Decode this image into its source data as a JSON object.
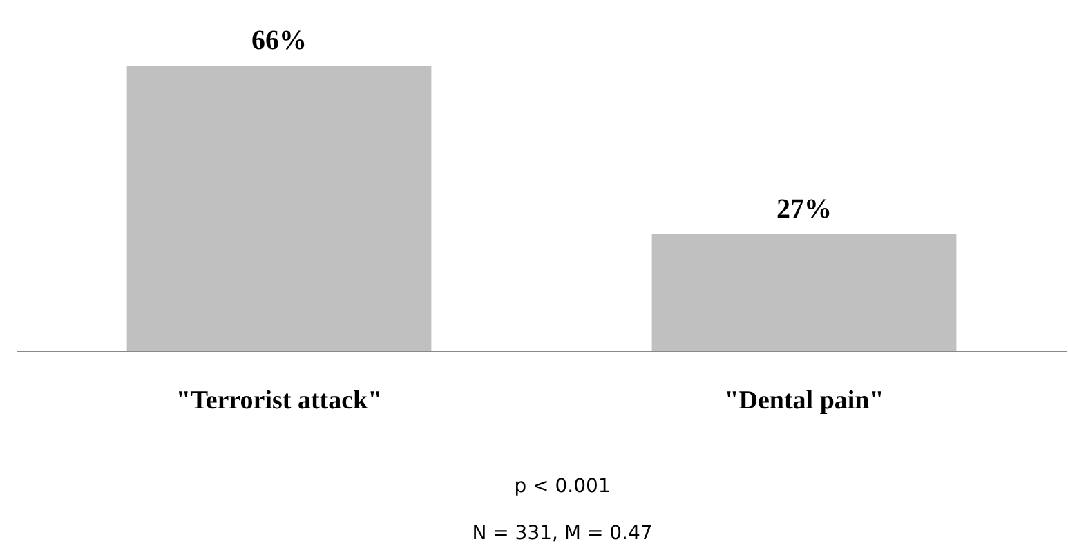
{
  "chart_data": {
    "type": "bar",
    "categories": [
      "\"Terrorist attack\"",
      "\"Dental pain\""
    ],
    "values": [
      66,
      27
    ],
    "value_labels": [
      "66%",
      "27%"
    ],
    "color": "#c0c0c0",
    "annotations": [
      "p < 0.001",
      "N = 331, M  = 0.47"
    ]
  }
}
